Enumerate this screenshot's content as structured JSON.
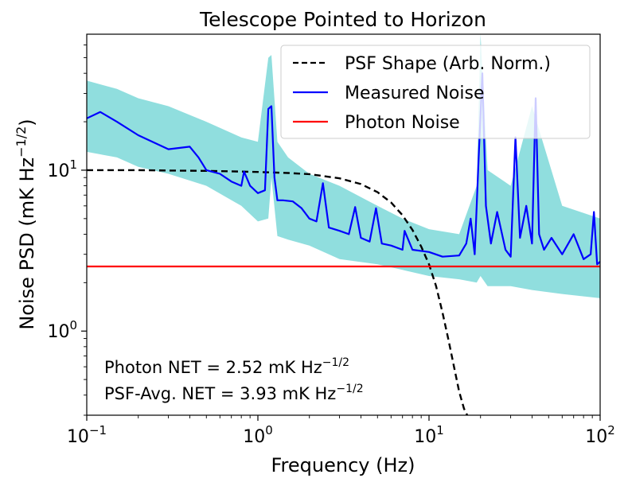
{
  "chart_data": {
    "type": "line",
    "title": "Telescope Pointed to Horizon",
    "xlabel": "Frequency (Hz)",
    "ylabel_main": "Noise PSD (mK Hz",
    "ylabel_sup": "−1/2",
    "ylabel_close": ")",
    "xscale": "log",
    "yscale": "log",
    "xlim": [
      0.1,
      100
    ],
    "ylim": [
      0.3,
      70
    ],
    "xticks": [
      {
        "value": 0.1,
        "base": "10",
        "exp": "−1"
      },
      {
        "value": 1,
        "base": "10",
        "exp": "0"
      },
      {
        "value": 10,
        "base": "10",
        "exp": "1"
      },
      {
        "value": 100,
        "base": "10",
        "exp": "2"
      }
    ],
    "yticks": [
      {
        "value": 1,
        "base": "10",
        "exp": "0"
      },
      {
        "value": 10,
        "base": "10",
        "exp": "1"
      }
    ],
    "series": [
      {
        "name": "PSF Shape (Arb. Norm.)",
        "style": "dashed",
        "color": "#000000",
        "x": [
          0.1,
          0.2,
          0.3,
          0.5,
          0.8,
          1.0,
          1.5,
          2.0,
          3.0,
          4.0,
          5.0,
          6.0,
          7.0,
          8.0,
          9.0,
          10.0,
          11.0,
          12.0,
          13.0,
          14.0,
          15.0,
          16.0,
          17.0
        ],
        "y": [
          10.0,
          10.0,
          9.95,
          9.9,
          9.8,
          9.75,
          9.6,
          9.45,
          8.9,
          8.2,
          7.3,
          6.3,
          5.25,
          4.25,
          3.35,
          2.6,
          1.9,
          1.3,
          0.88,
          0.6,
          0.42,
          0.33,
          0.29
        ]
      },
      {
        "name": "Measured Noise",
        "style": "solid",
        "color": "#0000ff",
        "x": [
          0.1,
          0.12,
          0.15,
          0.2,
          0.3,
          0.4,
          0.45,
          0.5,
          0.6,
          0.7,
          0.8,
          0.83,
          0.9,
          1.0,
          1.1,
          1.15,
          1.2,
          1.25,
          1.3,
          1.4,
          1.6,
          1.8,
          2.0,
          2.2,
          2.4,
          2.6,
          3.0,
          3.4,
          3.7,
          4.0,
          4.5,
          4.9,
          5.3,
          6.0,
          7.0,
          7.2,
          8.0,
          10.0,
          12.0,
          15.0,
          16.5,
          17.5,
          18.5,
          19.5,
          20.5,
          21.5,
          23.0,
          25.0,
          28.0,
          30.0,
          32.0,
          34.0,
          37.0,
          40.0,
          42.0,
          44.0,
          47.0,
          52.0,
          60.0,
          70.0,
          80.0,
          88.0,
          92.0,
          96.0,
          100.0
        ],
        "y": [
          21.0,
          23.0,
          20.0,
          16.5,
          13.5,
          14.0,
          12.0,
          10.0,
          9.5,
          8.5,
          8.0,
          9.8,
          8.0,
          7.2,
          7.5,
          24.0,
          25.0,
          9.0,
          6.5,
          6.5,
          6.4,
          5.8,
          5.0,
          4.8,
          8.3,
          4.4,
          4.2,
          4.0,
          5.9,
          3.8,
          3.6,
          5.8,
          3.5,
          3.4,
          3.2,
          4.2,
          3.2,
          3.1,
          2.9,
          2.95,
          3.5,
          5.0,
          3.0,
          12.0,
          40.0,
          6.0,
          3.5,
          5.5,
          3.2,
          2.9,
          16.0,
          3.8,
          6.0,
          3.5,
          28.0,
          4.0,
          3.2,
          3.8,
          3.0,
          4.0,
          2.8,
          3.0,
          5.5,
          2.6,
          2.7
        ]
      },
      {
        "name": "Photon Noise",
        "style": "solid",
        "color": "#ff0000",
        "x": [
          0.1,
          100
        ],
        "y": [
          2.52,
          2.52
        ]
      }
    ],
    "band": {
      "name": "Measured Noise spread",
      "color": "#7dd8d8",
      "x": [
        0.1,
        0.15,
        0.2,
        0.3,
        0.5,
        0.8,
        1.0,
        1.15,
        1.2,
        1.3,
        1.5,
        2.0,
        3.0,
        5.0,
        7.0,
        10.0,
        15.0,
        19.0,
        20.0,
        22.0,
        30.0,
        40.0,
        60.0,
        100.0
      ],
      "upper": [
        36.0,
        32.0,
        28.0,
        25.0,
        20.0,
        16.0,
        15.0,
        50.0,
        52.0,
        15.0,
        12.0,
        9.5,
        8.0,
        6.0,
        5.0,
        4.3,
        4.0,
        8.0,
        70.0,
        10.0,
        8.0,
        25.0,
        6.0,
        5.0
      ],
      "lower": [
        13.0,
        12.0,
        10.5,
        9.5,
        8.0,
        6.0,
        4.8,
        5.0,
        9.0,
        3.9,
        3.7,
        3.4,
        2.8,
        2.6,
        2.4,
        2.2,
        2.1,
        2.0,
        2.2,
        1.9,
        1.9,
        1.8,
        1.7,
        1.6
      ]
    },
    "legend_position": "top-right",
    "annotations": [
      {
        "prefix": "Photon NET = 2.52 mK Hz",
        "sup": "−1/2"
      },
      {
        "prefix": "PSF-Avg. NET = 3.93 mK Hz",
        "sup": "−1/2"
      }
    ]
  }
}
